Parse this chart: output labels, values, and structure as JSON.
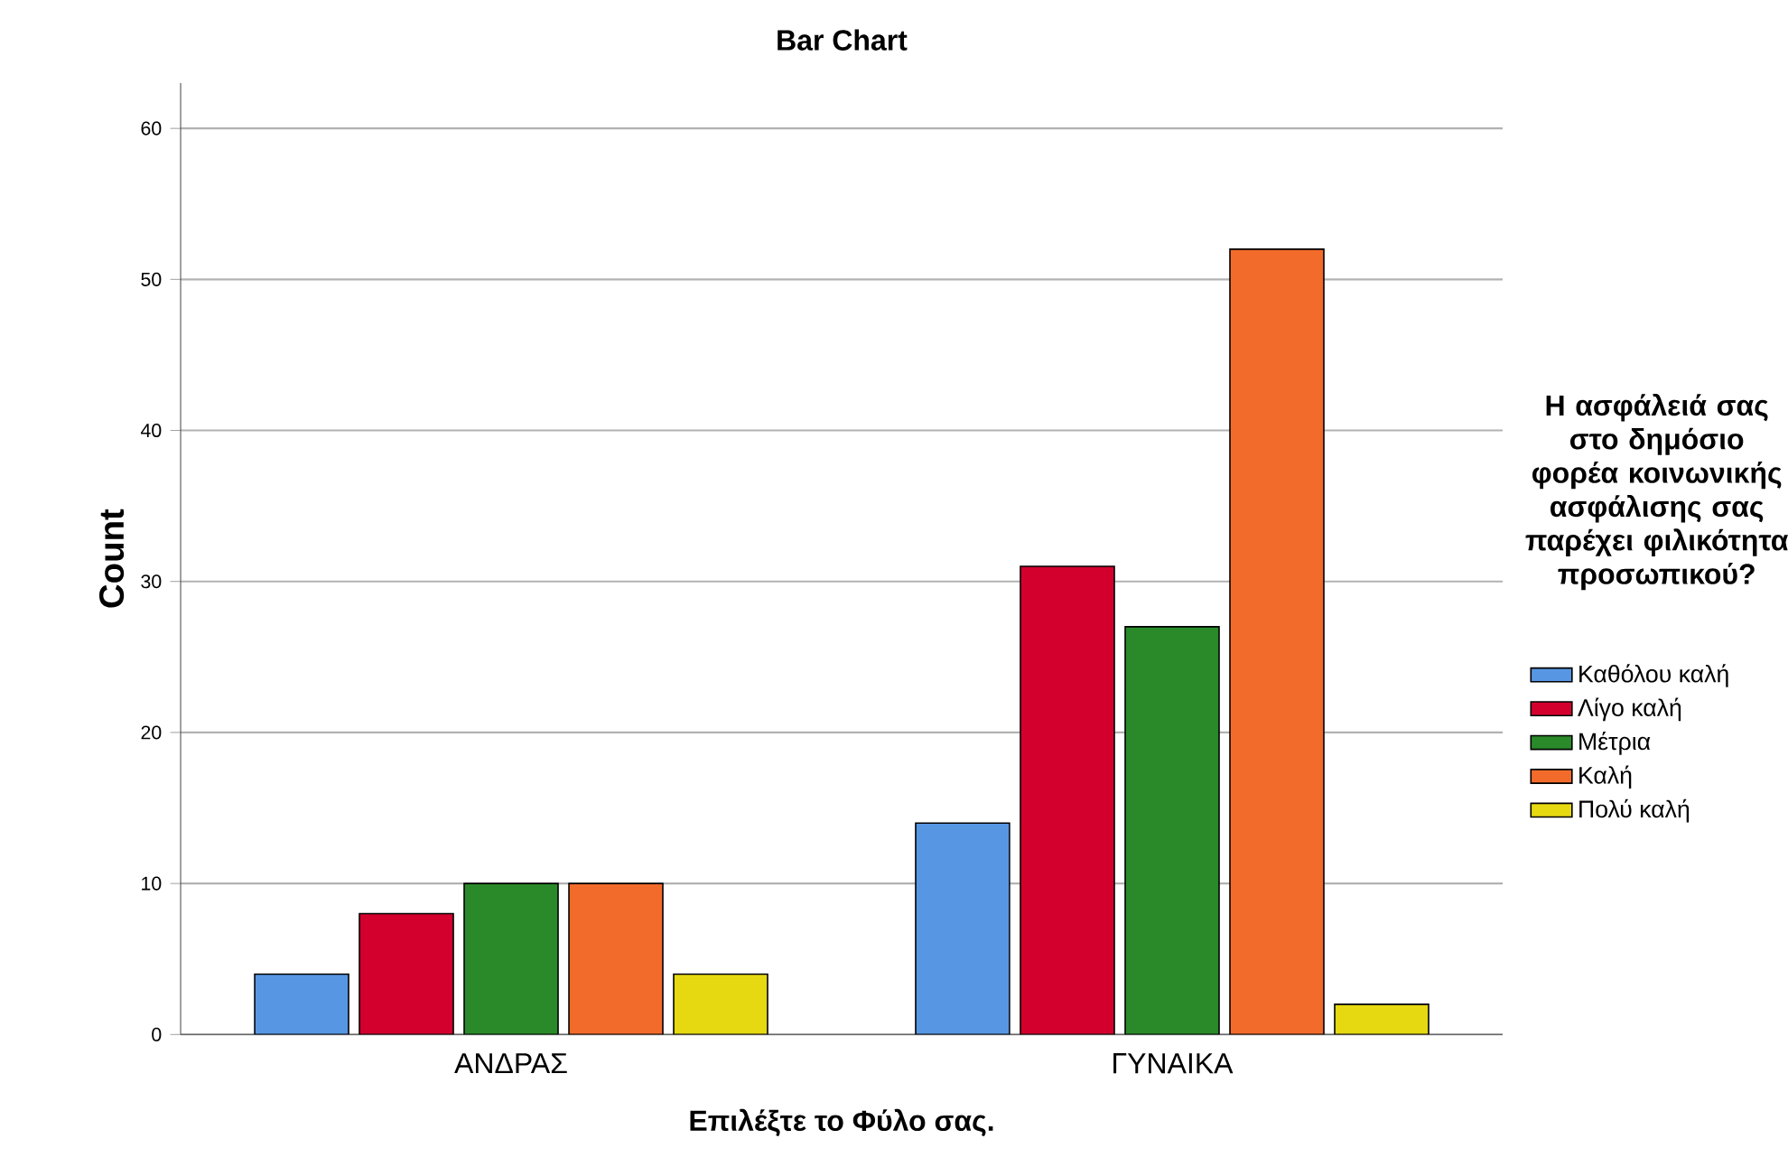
{
  "chart_data": {
    "type": "bar",
    "title": "Bar Chart",
    "xlabel": "Επιλέξτε το Φύλο σας.",
    "ylabel": "Count",
    "legend_title": "Η ασφάλειά σας στο δημόσιο φορέα κοινωνικής ασφάλισης σας παρέχει φιλικότητα προσωπικού?",
    "categories": [
      "ΑΝΔΡΑΣ",
      "ΓΥΝΑΙΚΑ"
    ],
    "series": [
      {
        "name": "Καθόλου καλή",
        "color": "#5796e3",
        "values": [
          4,
          14
        ]
      },
      {
        "name": "Λίγο καλή",
        "color": "#d3002e",
        "values": [
          8,
          31
        ]
      },
      {
        "name": "Μέτρια",
        "color": "#2a8a2a",
        "values": [
          10,
          27
        ]
      },
      {
        "name": "Καλή",
        "color": "#f26b2b",
        "values": [
          10,
          52
        ]
      },
      {
        "name": "Πολύ καλή",
        "color": "#e6d911",
        "values": [
          4,
          2
        ]
      }
    ],
    "ylim": [
      0,
      63
    ],
    "yticks": [
      0,
      10,
      20,
      30,
      40,
      50,
      60
    ],
    "grid": "y",
    "legend": "right"
  }
}
